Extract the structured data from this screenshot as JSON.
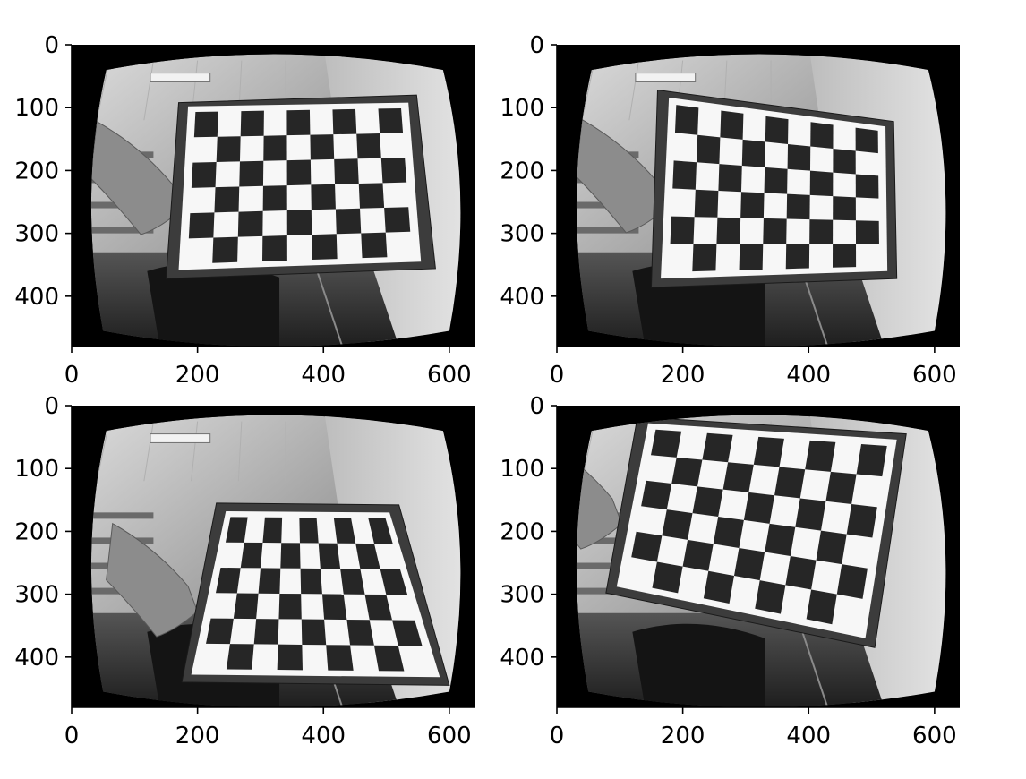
{
  "figure": {
    "background": "#ffffff",
    "panels": [
      {
        "id": "panel-top-left",
        "image_content": "grayscale fisheye photo of a hand holding a checkerboard calibration target",
        "pose": "frontal",
        "x_ticks": [
          "0",
          "200",
          "400",
          "600"
        ],
        "y_ticks": [
          "0",
          "100",
          "200",
          "300",
          "400"
        ],
        "xlim": [
          0,
          640
        ],
        "ylim": [
          480,
          0
        ]
      },
      {
        "id": "panel-top-right",
        "image_content": "grayscale fisheye photo of a hand holding a checkerboard calibration target",
        "pose": "tilted-left",
        "x_ticks": [
          "0",
          "200",
          "400",
          "600"
        ],
        "y_ticks": [
          "0",
          "100",
          "200",
          "300",
          "400"
        ],
        "xlim": [
          0,
          640
        ],
        "ylim": [
          480,
          0
        ]
      },
      {
        "id": "panel-bottom-left",
        "image_content": "grayscale fisheye photo of a hand holding a checkerboard calibration target",
        "pose": "tilted-back",
        "x_ticks": [
          "0",
          "200",
          "400",
          "600"
        ],
        "y_ticks": [
          "0",
          "100",
          "200",
          "300",
          "400"
        ],
        "xlim": [
          0,
          640
        ],
        "ylim": [
          480,
          0
        ]
      },
      {
        "id": "panel-bottom-right",
        "image_content": "grayscale fisheye photo of a hand holding a checkerboard calibration target",
        "pose": "rotated-close",
        "x_ticks": [
          "0",
          "200",
          "400",
          "600"
        ],
        "y_ticks": [
          "0",
          "100",
          "200",
          "300",
          "400"
        ],
        "xlim": [
          0,
          640
        ],
        "ylim": [
          480,
          0
        ]
      }
    ]
  }
}
